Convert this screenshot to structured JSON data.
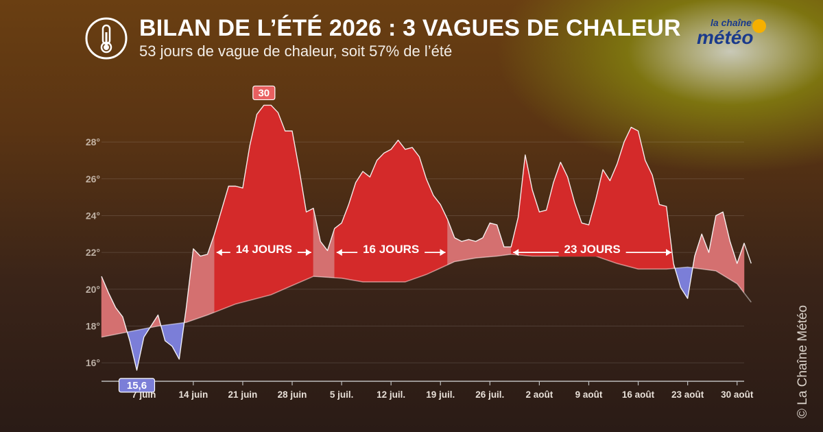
{
  "header": {
    "title": "BILAN DE L’ÉTÉ 2026 :  3 VAGUES DE CHALEUR",
    "subtitle": "53 jours de vague de chaleur, soit 57% de l’été",
    "logo_small": "la chaîne",
    "logo_big": "météo",
    "icon": "thermometer-icon"
  },
  "copyright": "© La Chaîne Météo",
  "colors": {
    "heat": "#d42a2a",
    "warm": "#d47070",
    "cold": "#7b7ed8",
    "normal_line": "#ffffff"
  },
  "chart_data": {
    "type": "area",
    "title": "",
    "x_ticks": [
      "7 juin",
      "14 juin",
      "21 juin",
      "28 juin",
      "5 juil.",
      "12 juil.",
      "19 juil.",
      "26 juil.",
      "2 août",
      "9 août",
      "16 août",
      "23 août",
      "30 août"
    ],
    "y_ticks": [
      "16°",
      "18°",
      "20°",
      "22°",
      "24°",
      "26°",
      "28°"
    ],
    "ylim": [
      15,
      30.5
    ],
    "x_range_days": [
      1,
      92
    ],
    "series": [
      {
        "values": [
          [
            1,
            20.7
          ],
          [
            2,
            19.8
          ],
          [
            3,
            19.0
          ],
          [
            4,
            18.5
          ],
          [
            5,
            17.2
          ],
          [
            6,
            15.6
          ],
          [
            7,
            17.4
          ],
          [
            8,
            18.0
          ],
          [
            9,
            18.6
          ],
          [
            10,
            17.2
          ],
          [
            11,
            16.9
          ],
          [
            12,
            16.2
          ],
          [
            13,
            19.0
          ],
          [
            14,
            22.2
          ],
          [
            15,
            21.8
          ],
          [
            16,
            21.9
          ],
          [
            17,
            23.0
          ],
          [
            18,
            24.3
          ],
          [
            19,
            25.6
          ],
          [
            20,
            25.6
          ],
          [
            21,
            25.5
          ],
          [
            22,
            27.8
          ],
          [
            23,
            29.5
          ],
          [
            24,
            30.0
          ],
          [
            25,
            30.0
          ],
          [
            26,
            29.6
          ],
          [
            27,
            28.6
          ],
          [
            28,
            28.6
          ],
          [
            29,
            26.5
          ],
          [
            30,
            24.2
          ],
          [
            31,
            24.4
          ],
          [
            32,
            22.6
          ],
          [
            33,
            22.1
          ],
          [
            34,
            23.3
          ],
          [
            35,
            23.6
          ],
          [
            36,
            24.6
          ],
          [
            37,
            25.8
          ],
          [
            38,
            26.4
          ],
          [
            39,
            26.1
          ],
          [
            40,
            27.0
          ],
          [
            41,
            27.4
          ],
          [
            42,
            27.6
          ],
          [
            43,
            28.1
          ],
          [
            44,
            27.6
          ],
          [
            45,
            27.7
          ],
          [
            46,
            27.2
          ],
          [
            47,
            26.0
          ],
          [
            48,
            25.1
          ],
          [
            49,
            24.6
          ],
          [
            50,
            23.8
          ],
          [
            51,
            22.8
          ],
          [
            52,
            22.6
          ],
          [
            53,
            22.7
          ],
          [
            54,
            22.6
          ],
          [
            55,
            22.8
          ],
          [
            56,
            23.6
          ],
          [
            57,
            23.5
          ],
          [
            58,
            22.3
          ],
          [
            59,
            22.3
          ],
          [
            60,
            23.9
          ],
          [
            61,
            27.3
          ],
          [
            62,
            25.4
          ],
          [
            63,
            24.2
          ],
          [
            64,
            24.3
          ],
          [
            65,
            25.8
          ],
          [
            66,
            26.9
          ],
          [
            67,
            26.1
          ],
          [
            68,
            24.7
          ],
          [
            69,
            23.6
          ],
          [
            70,
            23.5
          ],
          [
            71,
            24.9
          ],
          [
            72,
            26.5
          ],
          [
            73,
            25.9
          ],
          [
            74,
            26.8
          ],
          [
            75,
            28.0
          ],
          [
            76,
            28.8
          ],
          [
            77,
            28.6
          ],
          [
            78,
            27.0
          ],
          [
            79,
            26.2
          ],
          [
            80,
            24.6
          ],
          [
            81,
            24.5
          ],
          [
            82,
            21.4
          ],
          [
            83,
            20.1
          ],
          [
            84,
            19.5
          ],
          [
            85,
            21.8
          ],
          [
            86,
            23.0
          ],
          [
            87,
            22.0
          ],
          [
            88,
            24.0
          ],
          [
            89,
            24.2
          ],
          [
            90,
            22.6
          ],
          [
            91,
            21.4
          ],
          [
            92,
            22.5
          ],
          [
            93,
            21.4
          ]
        ]
      },
      {
        "values": [
          [
            1,
            17.4
          ],
          [
            5,
            17.7
          ],
          [
            9,
            18.0
          ],
          [
            13,
            18.2
          ],
          [
            16,
            18.6
          ],
          [
            20,
            19.2
          ],
          [
            25,
            19.7
          ],
          [
            28,
            20.2
          ],
          [
            31,
            20.7
          ],
          [
            35,
            20.6
          ],
          [
            38,
            20.4
          ],
          [
            44,
            20.4
          ],
          [
            47,
            20.8
          ],
          [
            51,
            21.5
          ],
          [
            54,
            21.7
          ],
          [
            57,
            21.8
          ],
          [
            59,
            21.9
          ],
          [
            62,
            21.8
          ],
          [
            67,
            21.8
          ],
          [
            71,
            21.8
          ],
          [
            74,
            21.4
          ],
          [
            77,
            21.1
          ],
          [
            81,
            21.1
          ],
          [
            84,
            21.2
          ],
          [
            88,
            21.0
          ],
          [
            91,
            20.3
          ],
          [
            93,
            19.3
          ]
        ]
      }
    ],
    "highlights": [
      {
        "label": "30",
        "x": 24,
        "y": 30.0,
        "color": "#e86060"
      },
      {
        "label": "15,6",
        "x": 6,
        "y": 15.6,
        "color": "#7b7ed8"
      }
    ],
    "waves": [
      {
        "label": "14 JOURS",
        "start": 17,
        "end": 31
      },
      {
        "label": "16 JOURS",
        "start": 34,
        "end": 50
      },
      {
        "label": "23 JOURS",
        "start": 59,
        "end": 82
      }
    ]
  }
}
